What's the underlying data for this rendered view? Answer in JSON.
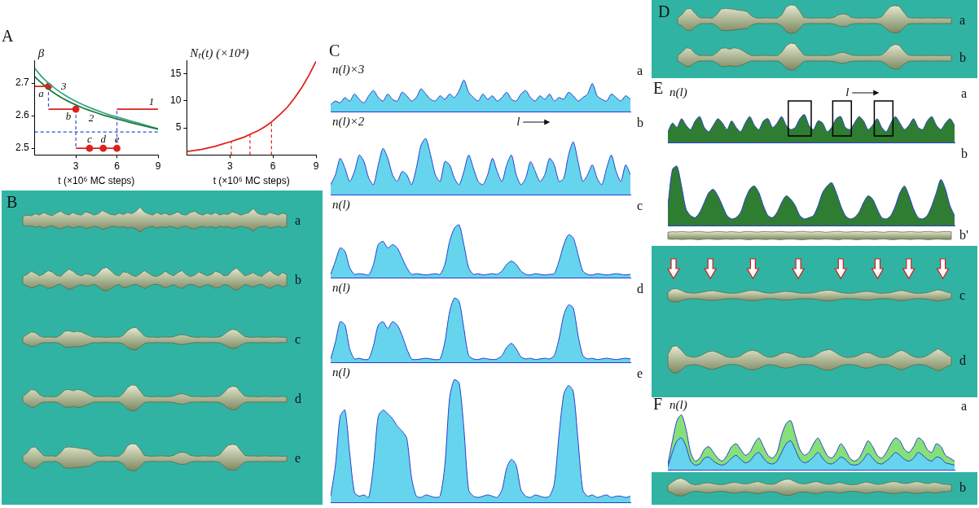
{
  "chart_data": [
    {
      "panel": "A",
      "type": "line",
      "ylabel": "β",
      "xlabel": "t (×10⁶ MC steps)",
      "xlim": [
        0,
        9
      ],
      "xticks": [
        3,
        6,
        9
      ],
      "ylim": [
        2.48,
        2.77
      ],
      "yticks": [
        2.5,
        2.6,
        2.7
      ],
      "grid": false,
      "series": [
        {
          "name": "1",
          "type": "line",
          "color": "#e0201b",
          "x": [
            0,
            1,
            1,
            1,
            3,
            3,
            3,
            6,
            6,
            6,
            9
          ],
          "values": [
            2.69,
            2.69,
            null,
            2.62,
            2.62,
            null,
            2.5,
            2.5,
            null,
            2.62,
            2.62
          ]
        },
        {
          "name": "2",
          "type": "line",
          "color": "#1f7a3a",
          "x": [
            0,
            0.5,
            1,
            1.5,
            2,
            2.5,
            3,
            3.5,
            4,
            4.5,
            5,
            5.5,
            6,
            6.5,
            7,
            7.5,
            8,
            8.5,
            9
          ],
          "values": [
            2.72,
            2.7,
            2.682,
            2.667,
            2.654,
            2.643,
            2.633,
            2.624,
            2.616,
            2.609,
            2.602,
            2.596,
            2.59,
            2.585,
            2.579,
            2.574,
            2.569,
            2.564,
            2.559
          ]
        },
        {
          "name": "3",
          "type": "line",
          "color": "#33a58a",
          "x": [
            0,
            0.5,
            1,
            1.5,
            2,
            2.5,
            3,
            3.5,
            4,
            4.5,
            5,
            5.5,
            6,
            6.5,
            7,
            7.5,
            8,
            8.5,
            9
          ],
          "values": [
            2.745,
            2.72,
            2.7,
            2.683,
            2.668,
            2.655,
            2.644,
            2.634,
            2.625,
            2.617,
            2.609,
            2.602,
            2.596,
            2.59,
            2.584,
            2.578,
            2.572,
            2.566,
            2.56
          ]
        },
        {
          "type": "scatter",
          "marker": "circle",
          "color": "#e0201b",
          "x": [
            1,
            3,
            4,
            5,
            6
          ],
          "values": [
            2.69,
            2.62,
            2.5,
            2.5,
            2.5
          ],
          "point_labels": [
            "a",
            "b",
            "c",
            "d",
            "e"
          ]
        },
        {
          "type": "line",
          "line_style": "dashed",
          "color": "#2f4fd6",
          "x": [
            1,
            1,
            1,
            3,
            3,
            3,
            6,
            6
          ],
          "values": [
            2.69,
            2.62,
            null,
            2.62,
            2.5,
            null,
            2.5,
            2.62
          ]
        },
        {
          "type": "line",
          "line_style": "dashed",
          "color": "#2f4fd6",
          "x": [
            0,
            9
          ],
          "values": [
            2.55,
            2.55
          ]
        }
      ]
    },
    {
      "type": "line",
      "ylabel": "Nₜ(t) (×10⁴)",
      "xlabel": "t (×10⁶ MC steps)",
      "xlim": [
        0,
        9
      ],
      "xticks": [
        3,
        6,
        9
      ],
      "ylim": [
        0,
        17.5
      ],
      "yticks": [
        5,
        10,
        15
      ],
      "grid": false,
      "series": [
        {
          "type": "line",
          "color": "#e0201b",
          "x": [
            0,
            0.5,
            1,
            1.5,
            2,
            2.5,
            3,
            3.5,
            4,
            4.5,
            5,
            5.5,
            6,
            6.5,
            7,
            7.5,
            8,
            8.5,
            9
          ],
          "values": [
            0.6,
            0.8,
            1.0,
            1.3,
            1.6,
            2.0,
            2.4,
            2.85,
            3.3,
            3.9,
            4.5,
            5.3,
            6.3,
            7.5,
            8.8,
            10.5,
            12.4,
            14.7,
            17.3
          ]
        },
        {
          "type": "line",
          "line_style": "dashed",
          "color": "#e0201b",
          "x": [
            3.1,
            3.1,
            3.1,
            4.4,
            4.4,
            4.4,
            5.9,
            5.9
          ],
          "values": [
            0,
            2.5,
            null,
            0,
            3.8,
            null,
            0,
            6.1
          ]
        }
      ]
    },
    {
      "panel": "C",
      "label": "a",
      "type": "area",
      "ylabel": "n(l)×3",
      "ylim": [
        0,
        1
      ],
      "tick_labels": false,
      "grid": false,
      "series": [
        {
          "color": "#66d4ec",
          "values": [
            0.2,
            0.3,
            0.25,
            0.4,
            0.3,
            0.5,
            0.35,
            0.25,
            0.45,
            0.6,
            0.4,
            0.3,
            0.5,
            0.35,
            0.3,
            0.55,
            0.45,
            0.3,
            0.4,
            0.65,
            0.5,
            0.35,
            0.3,
            0.45,
            0.35,
            0.5,
            0.4,
            0.6,
            0.9,
            0.55,
            0.4,
            0.3,
            0.5,
            0.35,
            0.45,
            0.3,
            0.4,
            0.55,
            0.35,
            0.3,
            0.5,
            0.6,
            0.4,
            0.3,
            0.45,
            0.35,
            0.5,
            0.3,
            0.4,
            0.35,
            0.55,
            0.45,
            0.3,
            0.4,
            0.5,
            0.8,
            0.45,
            0.35,
            0.3,
            0.5,
            0.4,
            0.3,
            0.45,
            0.35
          ]
        }
      ]
    },
    {
      "label": "b",
      "type": "area",
      "ylabel": "n(l)×2",
      "annotations": [
        "l"
      ],
      "ylim": [
        0,
        1
      ],
      "tick_labels": false,
      "grid": false,
      "series": [
        {
          "color": "#66d4ec",
          "values": [
            0.15,
            0.3,
            0.55,
            0.4,
            0.2,
            0.35,
            0.6,
            0.5,
            0.25,
            0.15,
            0.45,
            0.7,
            0.55,
            0.3,
            0.2,
            0.35,
            0.3,
            0.15,
            0.4,
            0.75,
            0.85,
            0.6,
            0.3,
            0.2,
            0.5,
            0.45,
            0.25,
            0.15,
            0.35,
            0.6,
            0.4,
            0.2,
            0.15,
            0.3,
            0.55,
            0.35,
            0.2,
            0.45,
            0.6,
            0.3,
            0.15,
            0.25,
            0.5,
            0.35,
            0.2,
            0.3,
            0.55,
            0.45,
            0.2,
            0.25,
            0.6,
            0.8,
            0.5,
            0.2,
            0.3,
            0.45,
            0.25,
            0.15,
            0.4,
            0.6,
            0.35,
            0.2,
            0.45,
            0.3
          ]
        }
      ]
    },
    {
      "label": "c",
      "type": "area",
      "ylabel": "n(l)",
      "ylim": [
        0,
        1
      ],
      "tick_labels": false,
      "grid": false,
      "series": [
        {
          "color": "#66d4ec",
          "values": [
            0.05,
            0.25,
            0.45,
            0.4,
            0.15,
            0.05,
            0.06,
            0.05,
            0.04,
            0.2,
            0.5,
            0.55,
            0.45,
            0.5,
            0.45,
            0.3,
            0.15,
            0.05,
            0.06,
            0.05,
            0.04,
            0.05,
            0.06,
            0.05,
            0.2,
            0.55,
            0.75,
            0.8,
            0.5,
            0.15,
            0.05,
            0.06,
            0.04,
            0.05,
            0.06,
            0.05,
            0.1,
            0.2,
            0.25,
            0.2,
            0.1,
            0.05,
            0.04,
            0.06,
            0.05,
            0.04,
            0.05,
            0.06,
            0.25,
            0.5,
            0.65,
            0.6,
            0.35,
            0.1,
            0.05,
            0.04,
            0.06,
            0.05,
            0.04,
            0.05,
            0.06,
            0.05,
            0.04,
            0.05
          ]
        }
      ]
    },
    {
      "label": "d",
      "type": "area",
      "ylabel": "n(l)",
      "ylim": [
        0,
        1
      ],
      "tick_labels": false,
      "grid": false,
      "series": [
        {
          "color": "#66d4ec",
          "values": [
            0.05,
            0.3,
            0.6,
            0.55,
            0.2,
            0.05,
            0.06,
            0.04,
            0.05,
            0.25,
            0.55,
            0.6,
            0.5,
            0.6,
            0.55,
            0.4,
            0.2,
            0.05,
            0.04,
            0.05,
            0.06,
            0.05,
            0.04,
            0.05,
            0.3,
            0.75,
            0.95,
            0.9,
            0.5,
            0.1,
            0.05,
            0.04,
            0.06,
            0.05,
            0.04,
            0.05,
            0.1,
            0.22,
            0.28,
            0.2,
            0.08,
            0.05,
            0.06,
            0.04,
            0.05,
            0.06,
            0.05,
            0.1,
            0.35,
            0.7,
            0.85,
            0.8,
            0.4,
            0.1,
            0.05,
            0.06,
            0.04,
            0.05,
            0.06,
            0.05,
            0.04,
            0.05,
            0.06,
            0.05
          ]
        }
      ]
    },
    {
      "label": "e",
      "type": "area",
      "ylabel": "n(l)",
      "ylim": [
        0,
        1
      ],
      "tick_labels": false,
      "grid": false,
      "series": [
        {
          "color": "#66d4ec",
          "values": [
            0.05,
            0.3,
            0.7,
            0.75,
            0.4,
            0.08,
            0.05,
            0.06,
            0.04,
            0.3,
            0.7,
            0.75,
            0.72,
            0.68,
            0.62,
            0.58,
            0.52,
            0.2,
            0.05,
            0.04,
            0.06,
            0.05,
            0.04,
            0.05,
            0.3,
            0.85,
            1,
            0.97,
            0.6,
            0.1,
            0.05,
            0.04,
            0.05,
            0.06,
            0.05,
            0.04,
            0.1,
            0.28,
            0.35,
            0.3,
            0.1,
            0.05,
            0.04,
            0.06,
            0.05,
            0.04,
            0.05,
            0.15,
            0.55,
            0.88,
            0.95,
            0.9,
            0.5,
            0.1,
            0.05,
            0.06,
            0.04,
            0.05,
            0.06,
            0.04,
            0.05,
            0.05,
            0.04,
            0.05
          ]
        }
      ]
    },
    {
      "panel": "E",
      "label": "a",
      "type": "area",
      "ylabel": "n(l)",
      "annotations": [
        "l"
      ],
      "ylim": [
        0,
        1
      ],
      "tick_labels": false,
      "grid": false,
      "series": [
        {
          "color": "#2e7d32",
          "values": [
            0.25,
            0.45,
            0.35,
            0.55,
            0.4,
            0.3,
            0.5,
            0.6,
            0.35,
            0.25,
            0.4,
            0.55,
            0.45,
            0.3,
            0.5,
            0.35,
            0.25,
            0.45,
            0.6,
            0.4,
            0.3,
            0.5,
            0.55,
            0.35,
            0.45,
            0.6,
            0.4,
            0.3,
            0.35,
            0.55,
            0.65,
            0.4,
            0.3,
            0.5,
            0.45,
            0.25,
            0.35,
            0.55,
            0.6,
            0.35,
            0.3,
            0.45,
            0.6,
            0.5,
            0.3,
            0.4,
            0.55,
            0.35,
            0.25,
            0.45,
            0.6,
            0.45,
            0.3,
            0.4,
            0.55,
            0.35,
            0.3,
            0.5,
            0.6,
            0.4,
            0.3,
            0.45,
            0.55,
            0.4
          ]
        }
      ]
    },
    {
      "label": "b",
      "type": "area",
      "ylim": [
        0,
        1
      ],
      "tick_labels": false,
      "grid": false,
      "series": [
        {
          "color": "#2e7d32",
          "values": [
            0.3,
            0.85,
            0.9,
            0.6,
            0.25,
            0.15,
            0.12,
            0.2,
            0.35,
            0.5,
            0.55,
            0.45,
            0.3,
            0.15,
            0.1,
            0.12,
            0.2,
            0.4,
            0.55,
            0.6,
            0.5,
            0.3,
            0.15,
            0.12,
            0.2,
            0.35,
            0.45,
            0.4,
            0.3,
            0.15,
            0.1,
            0.12,
            0.15,
            0.3,
            0.5,
            0.6,
            0.65,
            0.5,
            0.3,
            0.15,
            0.1,
            0.12,
            0.2,
            0.35,
            0.45,
            0.4,
            0.25,
            0.12,
            0.1,
            0.15,
            0.3,
            0.5,
            0.6,
            0.45,
            0.25,
            0.12,
            0.1,
            0.15,
            0.3,
            0.5,
            0.7,
            0.55,
            0.3,
            0.15
          ]
        }
      ]
    },
    {
      "panel": "F",
      "label": "a",
      "type": "area",
      "ylabel": "n(l)",
      "ylim": [
        0,
        1
      ],
      "tick_labels": false,
      "grid": false,
      "series": [
        {
          "color": "#86e07a",
          "values": [
            0.1,
            0.5,
            0.85,
            0.95,
            0.7,
            0.3,
            0.15,
            0.2,
            0.35,
            0.4,
            0.3,
            0.2,
            0.15,
            0.25,
            0.4,
            0.45,
            0.35,
            0.25,
            0.3,
            0.45,
            0.55,
            0.4,
            0.25,
            0.2,
            0.3,
            0.6,
            0.8,
            0.85,
            0.6,
            0.35,
            0.25,
            0.3,
            0.45,
            0.55,
            0.4,
            0.25,
            0.2,
            0.3,
            0.45,
            0.35,
            0.2,
            0.15,
            0.2,
            0.35,
            0.5,
            0.4,
            0.25,
            0.2,
            0.3,
            0.45,
            0.55,
            0.5,
            0.35,
            0.3,
            0.4,
            0.55,
            0.5,
            0.35,
            0.3,
            0.45,
            0.4,
            0.25,
            0.2,
            0.15
          ]
        },
        {
          "color": "#66d4ec",
          "values": [
            0.05,
            0.3,
            0.5,
            0.55,
            0.4,
            0.15,
            0.08,
            0.1,
            0.2,
            0.22,
            0.15,
            0.1,
            0.08,
            0.12,
            0.2,
            0.25,
            0.18,
            0.12,
            0.15,
            0.25,
            0.3,
            0.2,
            0.12,
            0.1,
            0.15,
            0.3,
            0.45,
            0.5,
            0.35,
            0.18,
            0.12,
            0.15,
            0.22,
            0.3,
            0.2,
            0.12,
            0.1,
            0.15,
            0.22,
            0.18,
            0.1,
            0.08,
            0.1,
            0.18,
            0.28,
            0.2,
            0.12,
            0.1,
            0.15,
            0.22,
            0.3,
            0.25,
            0.18,
            0.15,
            0.2,
            0.3,
            0.25,
            0.18,
            0.15,
            0.22,
            0.2,
            0.12,
            0.1,
            0.08
          ]
        }
      ]
    }
  ],
  "wires": [
    {
      "panel": "B",
      "label": "a"
    },
    {
      "label": "b"
    },
    {
      "label": "c"
    },
    {
      "label": "d"
    },
    {
      "label": "e"
    },
    {
      "panel": "D",
      "label": "a"
    },
    {
      "label": "b"
    },
    {
      "label": "b'"
    },
    {
      "label": "c"
    },
    {
      "label": "d"
    },
    {
      "label": "b"
    }
  ]
}
